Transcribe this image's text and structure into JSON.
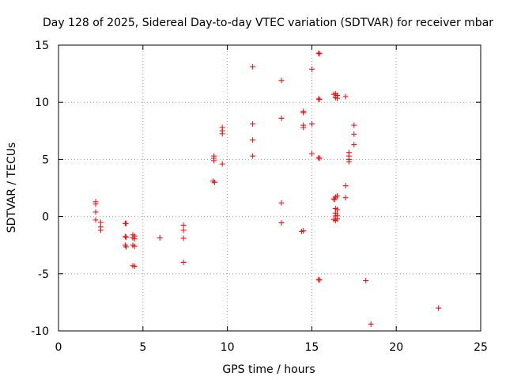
{
  "chart_data": {
    "type": "scatter",
    "title": "Day 128 of 2025, Sidereal Day-to-day VTEC variation (SDTVAR) for receiver mbar",
    "xlabel": "GPS time / hours",
    "ylabel": "SDTVAR / TECUs",
    "xlim": [
      0,
      25
    ],
    "ylim": [
      -10,
      15
    ],
    "xticks": [
      0,
      5,
      10,
      15,
      20,
      25
    ],
    "yticks": [
      -10,
      -5,
      0,
      5,
      10,
      15
    ],
    "grid": true,
    "marker": "+",
    "color": "#ff0000",
    "points": [
      [
        2.2,
        1.3
      ],
      [
        2.2,
        1.1
      ],
      [
        2.2,
        0.4
      ],
      [
        2.2,
        -0.3
      ],
      [
        2.5,
        -0.5
      ],
      [
        2.5,
        -0.9
      ],
      [
        2.5,
        -1.2
      ],
      [
        3.95,
        -0.6
      ],
      [
        4.0,
        -0.6
      ],
      [
        3.95,
        -1.75
      ],
      [
        4.0,
        -1.8
      ],
      [
        3.95,
        -2.5
      ],
      [
        4.0,
        -2.65
      ],
      [
        4.4,
        -1.6
      ],
      [
        4.5,
        -1.7
      ],
      [
        4.4,
        -1.85
      ],
      [
        4.5,
        -1.95
      ],
      [
        4.4,
        -2.5
      ],
      [
        4.5,
        -2.6
      ],
      [
        4.4,
        -4.3
      ],
      [
        4.5,
        -4.35
      ],
      [
        6.0,
        -1.85
      ],
      [
        7.4,
        -0.75
      ],
      [
        7.4,
        -1.2
      ],
      [
        7.4,
        -1.9
      ],
      [
        7.4,
        -4.0
      ],
      [
        9.2,
        5.3
      ],
      [
        9.2,
        5.1
      ],
      [
        9.2,
        4.9
      ],
      [
        9.15,
        3.1
      ],
      [
        9.25,
        3.0
      ],
      [
        9.7,
        7.8
      ],
      [
        9.7,
        7.5
      ],
      [
        9.7,
        7.25
      ],
      [
        9.7,
        4.6
      ],
      [
        11.5,
        13.1
      ],
      [
        11.5,
        8.1
      ],
      [
        11.5,
        6.7
      ],
      [
        11.5,
        5.3
      ],
      [
        13.2,
        11.9
      ],
      [
        13.2,
        8.6
      ],
      [
        13.2,
        1.2
      ],
      [
        13.2,
        -0.55
      ],
      [
        14.5,
        9.2
      ],
      [
        14.5,
        9.1
      ],
      [
        14.5,
        8.0
      ],
      [
        14.5,
        7.8
      ],
      [
        14.4,
        -1.3
      ],
      [
        14.5,
        -1.25
      ],
      [
        15.0,
        12.9
      ],
      [
        15.0,
        8.1
      ],
      [
        15.0,
        5.5
      ],
      [
        15.4,
        14.3
      ],
      [
        15.45,
        14.25
      ],
      [
        15.4,
        10.3
      ],
      [
        15.45,
        10.25
      ],
      [
        15.4,
        5.15
      ],
      [
        15.45,
        5.1
      ],
      [
        15.4,
        -5.5
      ],
      [
        15.45,
        -5.55
      ],
      [
        16.3,
        10.7
      ],
      [
        16.4,
        10.75
      ],
      [
        16.5,
        10.6
      ],
      [
        16.4,
        10.4
      ],
      [
        16.5,
        10.35
      ],
      [
        16.3,
        1.55
      ],
      [
        16.4,
        1.7
      ],
      [
        16.5,
        1.8
      ],
      [
        16.35,
        1.5
      ],
      [
        16.4,
        0.7
      ],
      [
        16.5,
        0.6
      ],
      [
        16.4,
        0.3
      ],
      [
        16.4,
        0.05
      ],
      [
        16.5,
        0.1
      ],
      [
        16.3,
        -0.25
      ],
      [
        16.4,
        -0.35
      ],
      [
        16.5,
        -0.2
      ],
      [
        17.0,
        10.5
      ],
      [
        17.0,
        2.7
      ],
      [
        17.0,
        1.65
      ],
      [
        17.2,
        5.6
      ],
      [
        17.2,
        5.3
      ],
      [
        17.2,
        5.0
      ],
      [
        17.2,
        4.8
      ],
      [
        17.5,
        8.0
      ],
      [
        17.5,
        7.2
      ],
      [
        17.5,
        6.3
      ],
      [
        18.2,
        -5.6
      ],
      [
        18.5,
        -9.4
      ],
      [
        22.5,
        -8.0
      ]
    ]
  }
}
